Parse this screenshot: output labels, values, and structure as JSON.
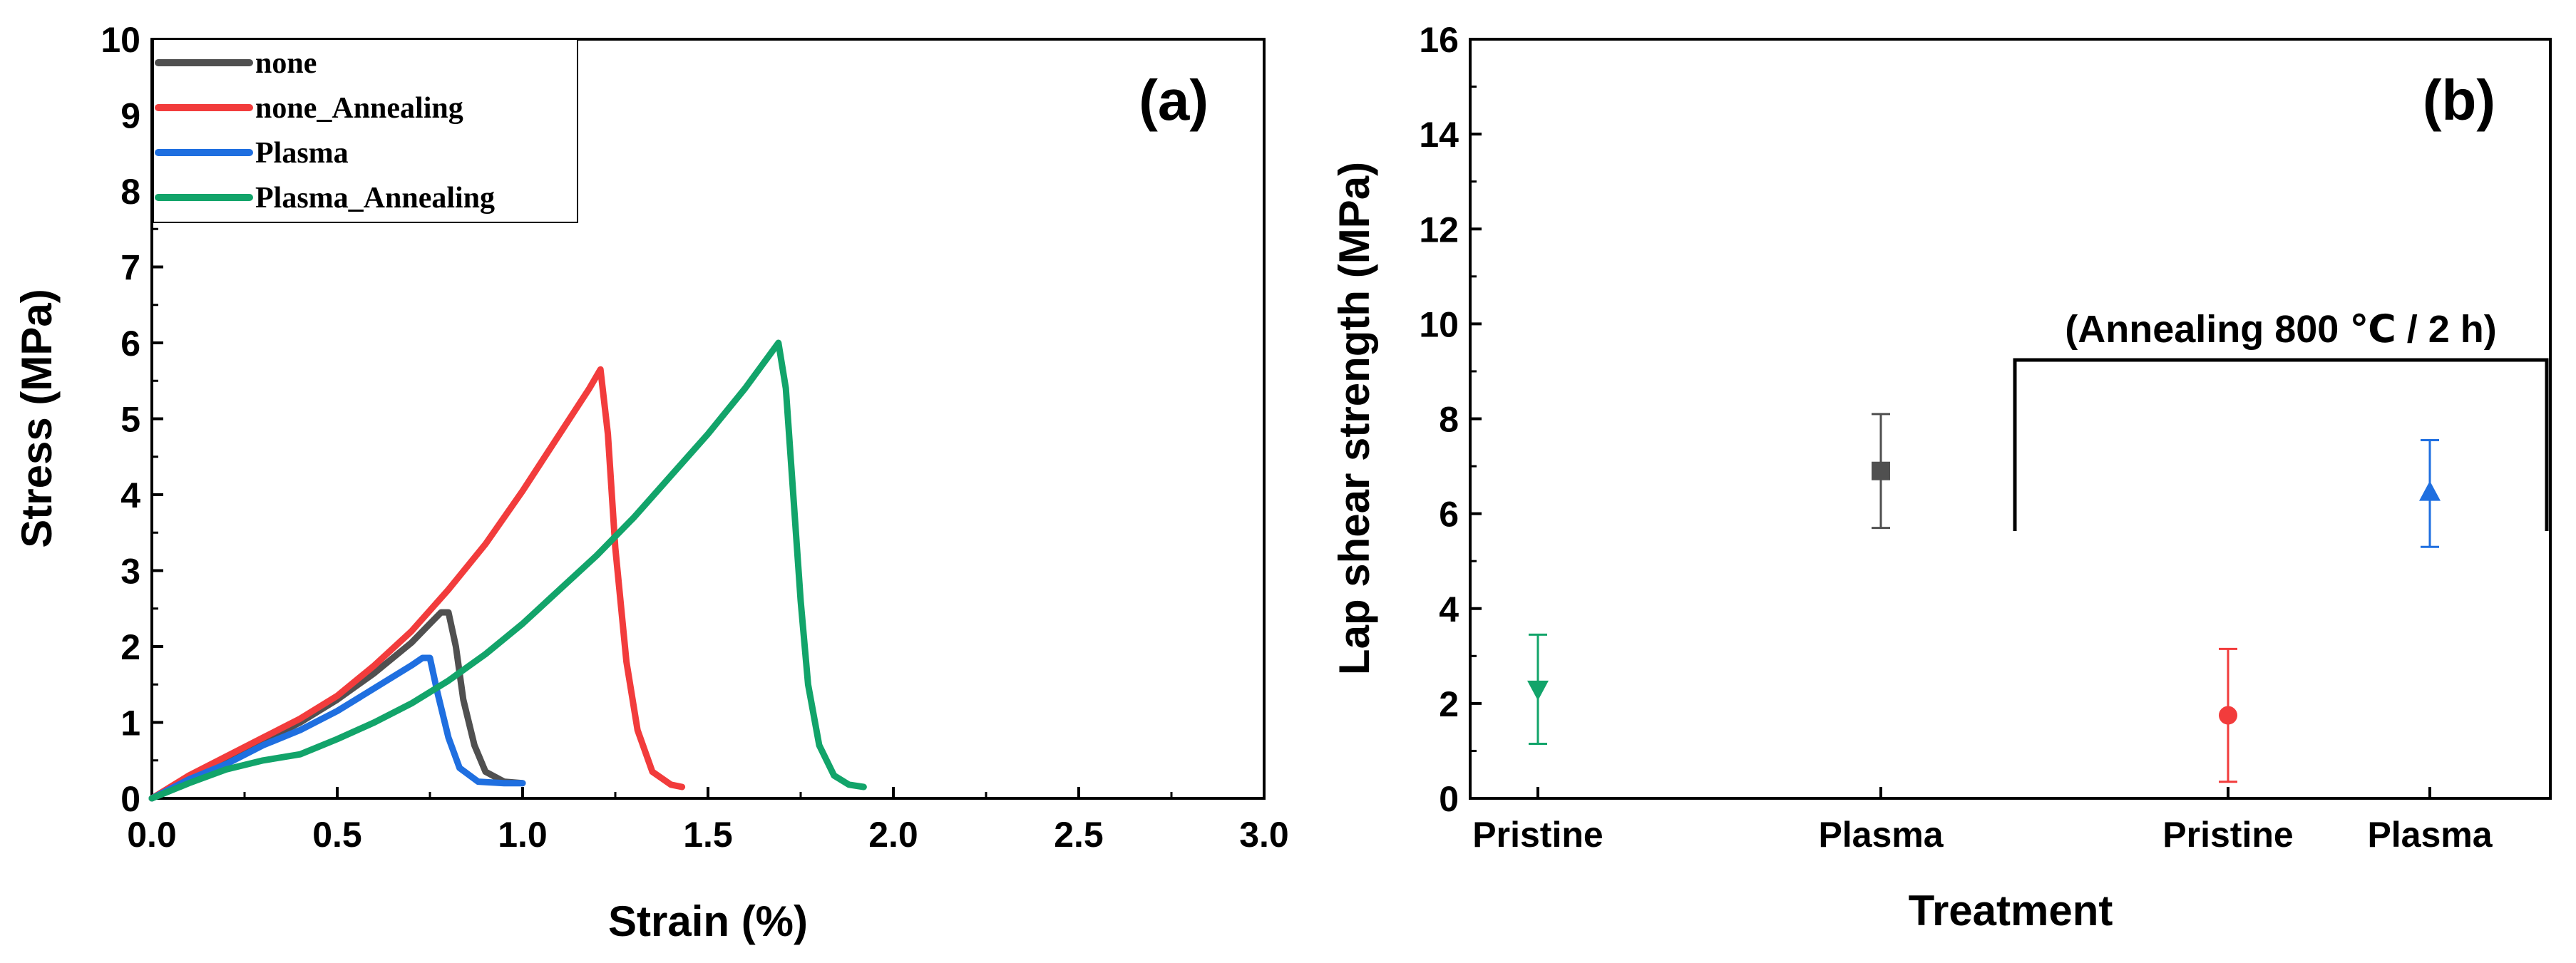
{
  "chart_data": [
    {
      "type": "line",
      "panel_label": "(a)",
      "xlabel": "Strain (%)",
      "ylabel": "Stress (MPa)",
      "xlim": [
        0.0,
        3.0
      ],
      "ylim": [
        0,
        10
      ],
      "xticks": [
        "0.0",
        "0.5",
        "1.0",
        "1.5",
        "2.0",
        "2.5",
        "3.0"
      ],
      "yticks": [
        "0",
        "1",
        "2",
        "3",
        "4",
        "5",
        "6",
        "7",
        "8",
        "9",
        "10"
      ],
      "legend_position": "top-left",
      "series": [
        {
          "name": "none",
          "color": "#505050",
          "x": [
            0,
            0.1,
            0.2,
            0.3,
            0.4,
            0.5,
            0.6,
            0.7,
            0.75,
            0.78,
            0.8,
            0.82,
            0.84,
            0.87,
            0.9,
            0.95,
            1.0
          ],
          "y": [
            0,
            0.25,
            0.5,
            0.75,
            1.0,
            1.3,
            1.65,
            2.05,
            2.3,
            2.45,
            2.45,
            2.0,
            1.3,
            0.7,
            0.35,
            0.22,
            0.2
          ]
        },
        {
          "name": "none_Annealing",
          "color": "#f23c3c",
          "x": [
            0,
            0.1,
            0.2,
            0.3,
            0.4,
            0.5,
            0.6,
            0.7,
            0.8,
            0.9,
            1.0,
            1.1,
            1.18,
            1.21,
            1.23,
            1.25,
            1.28,
            1.31,
            1.35,
            1.4,
            1.43
          ],
          "y": [
            0,
            0.3,
            0.55,
            0.8,
            1.05,
            1.35,
            1.75,
            2.2,
            2.75,
            3.35,
            4.05,
            4.8,
            5.4,
            5.65,
            4.8,
            3.3,
            1.8,
            0.9,
            0.35,
            0.18,
            0.15
          ]
        },
        {
          "name": "Plasma",
          "color": "#1f6fe0",
          "x": [
            0,
            0.1,
            0.2,
            0.3,
            0.4,
            0.5,
            0.6,
            0.7,
            0.73,
            0.75,
            0.77,
            0.8,
            0.83,
            0.88,
            0.95,
            1.0
          ],
          "y": [
            0,
            0.25,
            0.45,
            0.7,
            0.9,
            1.15,
            1.45,
            1.75,
            1.85,
            1.85,
            1.4,
            0.8,
            0.4,
            0.22,
            0.2,
            0.2
          ]
        },
        {
          "name": "Plasma_Annealing",
          "color": "#12a46a",
          "x": [
            0,
            0.1,
            0.2,
            0.3,
            0.4,
            0.45,
            0.5,
            0.6,
            0.7,
            0.8,
            0.9,
            1.0,
            1.1,
            1.2,
            1.3,
            1.4,
            1.5,
            1.6,
            1.66,
            1.69,
            1.71,
            1.73,
            1.75,
            1.77,
            1.8,
            1.84,
            1.88,
            1.92
          ],
          "y": [
            0,
            0.2,
            0.38,
            0.5,
            0.58,
            0.68,
            0.78,
            1.0,
            1.25,
            1.55,
            1.9,
            2.3,
            2.75,
            3.2,
            3.7,
            4.25,
            4.8,
            5.4,
            5.8,
            6.0,
            5.4,
            4.0,
            2.6,
            1.5,
            0.7,
            0.3,
            0.18,
            0.15
          ]
        }
      ]
    },
    {
      "type": "scatter",
      "panel_label": "(b)",
      "xlabel": "Treatment",
      "ylabel": "Lap shear strength (MPa)",
      "ylim": [
        0,
        16
      ],
      "yticks": [
        "0",
        "2",
        "4",
        "6",
        "8",
        "10",
        "12",
        "14",
        "16"
      ],
      "categories": [
        "Pristine",
        "Plasma",
        "Pristine",
        "Plasma"
      ],
      "annotation": "(Annealing 800 ℃ / 2 h)",
      "points": [
        {
          "category_index": 0,
          "value": 2.3,
          "error_low": 1.15,
          "error_high": 3.45,
          "marker": "triangle-down",
          "color": "#12a46a"
        },
        {
          "category_index": 1,
          "value": 6.9,
          "error_low": 5.7,
          "error_high": 8.1,
          "marker": "square",
          "color": "#505050"
        },
        {
          "category_index": 2,
          "value": 1.75,
          "error_low": 0.35,
          "error_high": 3.15,
          "marker": "circle",
          "color": "#f23c3c"
        },
        {
          "category_index": 3,
          "value": 6.45,
          "error_low": 5.3,
          "error_high": 7.55,
          "marker": "triangle-up",
          "color": "#1f6fe0"
        }
      ]
    }
  ]
}
